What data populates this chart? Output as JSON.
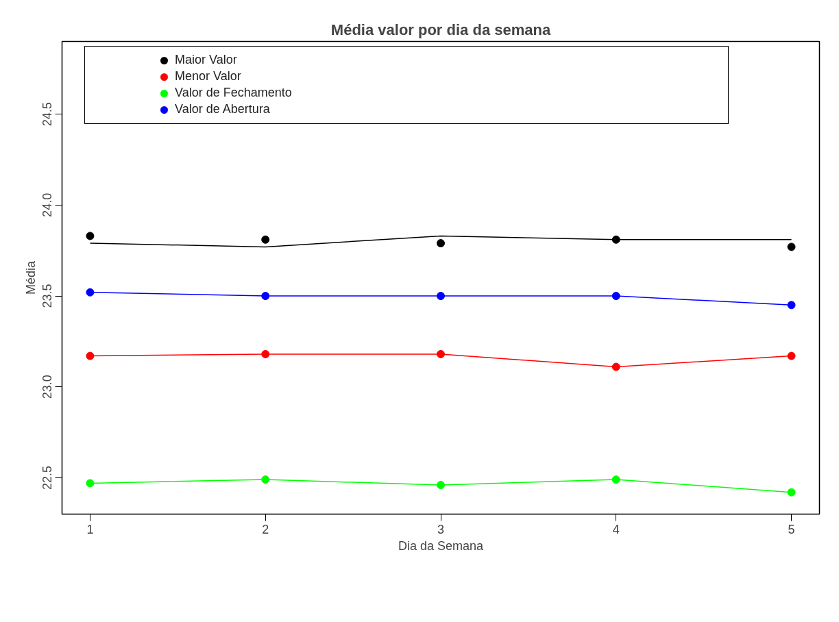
{
  "chart_data": {
    "type": "line",
    "title": "Média valor por dia da semana",
    "xlabel": "Dia da Semana",
    "ylabel": "Média",
    "x": [
      1,
      2,
      3,
      4,
      5
    ],
    "xlim": [
      0.84,
      5.16
    ],
    "xticks": [
      1,
      2,
      3,
      4,
      5
    ],
    "ylim": [
      22.3,
      24.9
    ],
    "yticks": [
      22.5,
      {
        "value": 23,
        "label": "23.0"
      },
      23.5,
      {
        "value": 24,
        "label": "24.0"
      },
      24.5
    ],
    "grid": false,
    "legend": "top left",
    "marker": "circle",
    "line_style": "solid",
    "series": [
      {
        "name": "Maior Valor",
        "color": "#000000",
        "type": "scatter",
        "values": [
          23.83,
          23.81,
          23.79,
          23.81,
          23.77
        ]
      },
      {
        "name": "Menor Valor",
        "color": "#ff0000",
        "values": [
          23.17,
          23.18,
          23.18,
          23.11,
          23.17
        ]
      },
      {
        "name": "Valor de Fechamento",
        "color": "#00ff00",
        "values": [
          22.47,
          22.49,
          22.46,
          22.49,
          22.42
        ]
      },
      {
        "name": "Valor de Abertura",
        "color": "#0000ff",
        "values": [
          23.52,
          23.5,
          23.5,
          23.5,
          23.45
        ]
      },
      {
        "color": "#000000",
        "values": [
          23.79,
          23.77,
          23.83,
          23.81,
          23.81
        ],
        "marker": "none"
      }
    ]
  }
}
